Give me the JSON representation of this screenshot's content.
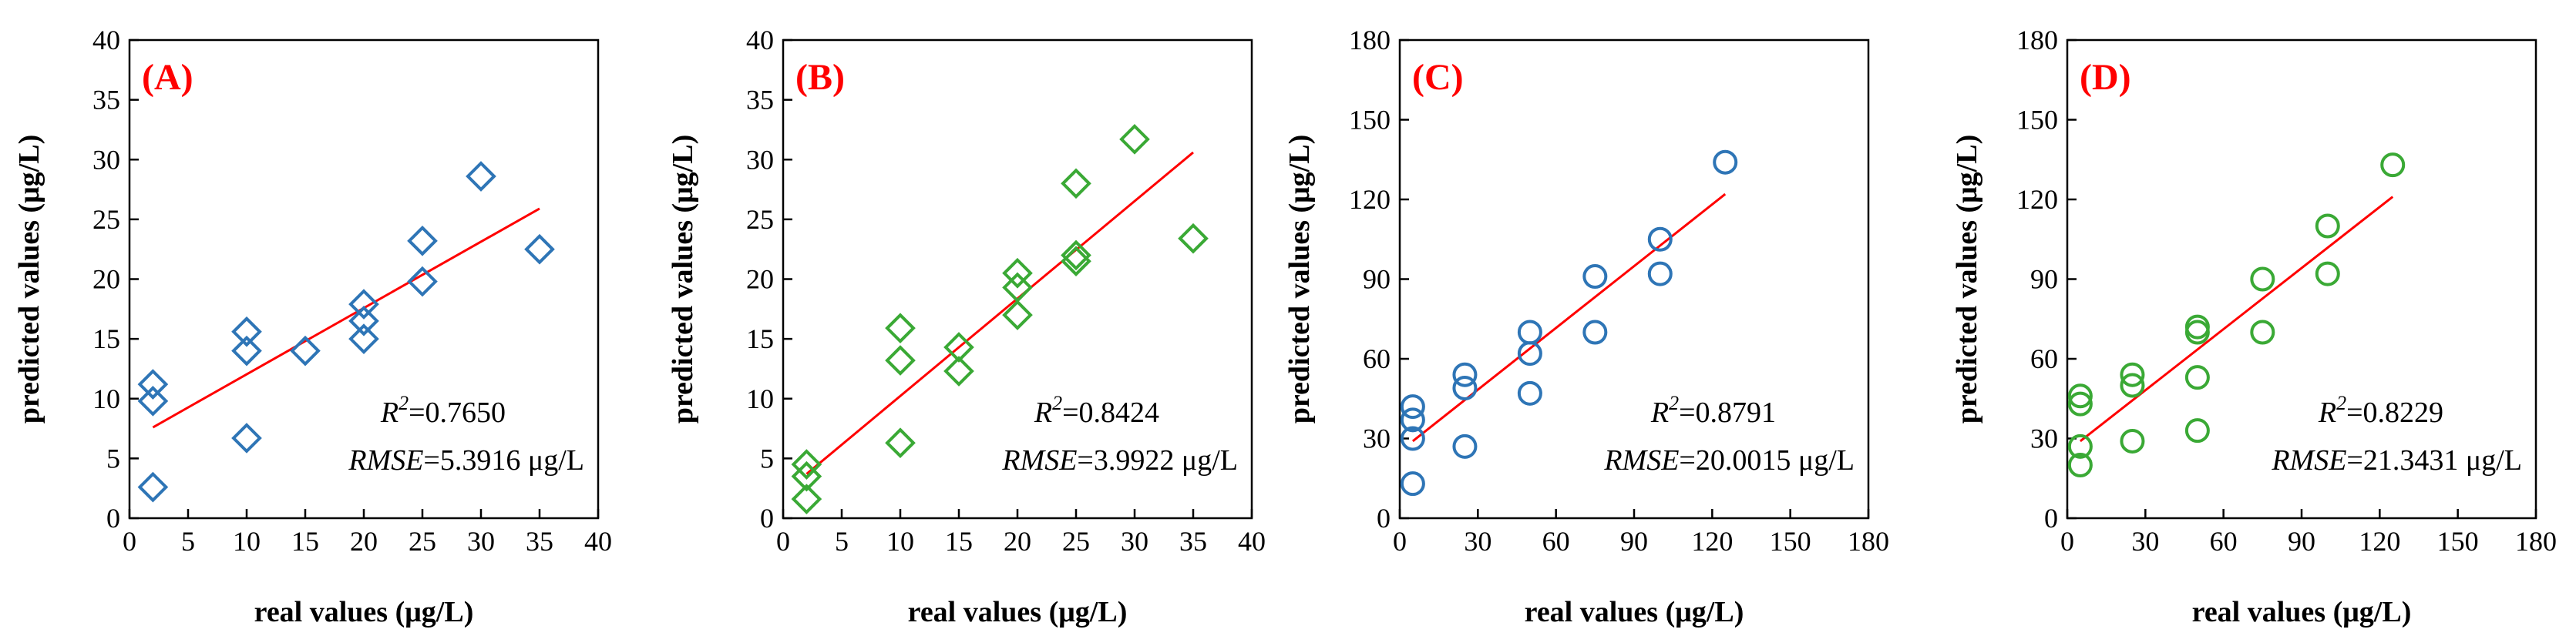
{
  "colors": {
    "blue": "#2e75b6",
    "green": "#3aa935",
    "fit": "#ff0000",
    "axis": "#000000"
  },
  "chart_data": [
    {
      "type": "scatter",
      "panel_label": "(A)",
      "xlabel": "real values (μg/L)",
      "ylabel": "predicted values (μg/L)",
      "xlim": [
        0,
        40
      ],
      "ylim": [
        0,
        40
      ],
      "xticks": [
        "0",
        "5",
        "10",
        "15",
        "20",
        "25",
        "30",
        "35",
        "40"
      ],
      "yticks": [
        "0",
        "5",
        "10",
        "15",
        "20",
        "25",
        "30",
        "35",
        "40"
      ],
      "marker": "diamond",
      "marker_color": "blue",
      "points": [
        [
          2,
          2.6
        ],
        [
          2,
          9.8
        ],
        [
          2,
          11.2
        ],
        [
          10,
          6.7
        ],
        [
          10,
          14
        ],
        [
          10,
          15.6
        ],
        [
          15,
          14
        ],
        [
          20,
          15
        ],
        [
          20,
          16.5
        ],
        [
          20,
          17.9
        ],
        [
          25,
          19.8
        ],
        [
          25,
          23.2
        ],
        [
          30,
          28.6
        ],
        [
          35,
          22.5
        ]
      ],
      "fit": [
        [
          2,
          7.6
        ],
        [
          35,
          25.9
        ]
      ],
      "r2_label": "R",
      "r2_sup": "2",
      "r2_value": "=0.7650",
      "rmse_label": "RMSE",
      "rmse_value": "=5.3916 μg/L"
    },
    {
      "type": "scatter",
      "panel_label": "(B)",
      "xlabel": "real values (μg/L)",
      "ylabel": "predicted values (μg/L)",
      "xlim": [
        0,
        40
      ],
      "ylim": [
        0,
        40
      ],
      "xticks": [
        "0",
        "5",
        "10",
        "15",
        "20",
        "25",
        "30",
        "35",
        "40"
      ],
      "yticks": [
        "0",
        "5",
        "10",
        "15",
        "20",
        "25",
        "30",
        "35",
        "40"
      ],
      "marker": "diamond",
      "marker_color": "green",
      "points": [
        [
          2,
          1.6
        ],
        [
          2,
          3.5
        ],
        [
          2,
          4.5
        ],
        [
          10,
          6.3
        ],
        [
          10,
          13.2
        ],
        [
          10,
          15.9
        ],
        [
          15,
          12.3
        ],
        [
          15,
          14.3
        ],
        [
          20,
          17
        ],
        [
          20,
          19.3
        ],
        [
          20,
          20.5
        ],
        [
          25,
          21.5
        ],
        [
          25,
          22
        ],
        [
          25,
          28
        ],
        [
          30,
          31.7
        ],
        [
          35,
          23.4
        ]
      ],
      "fit": [
        [
          2,
          3.7
        ],
        [
          35,
          30.6
        ]
      ],
      "r2_label": "R",
      "r2_sup": "2",
      "r2_value": "=0.8424",
      "rmse_label": "RMSE",
      "rmse_value": "=3.9922 μg/L"
    },
    {
      "type": "scatter",
      "panel_label": "(C)",
      "xlabel": "real values (μg/L)",
      "ylabel": "predicted values (μg/L)",
      "xlim": [
        0,
        180
      ],
      "ylim": [
        0,
        180
      ],
      "xticks": [
        "0",
        "30",
        "60",
        "90",
        "120",
        "150",
        "180"
      ],
      "yticks": [
        "0",
        "30",
        "60",
        "90",
        "120",
        "150",
        "180"
      ],
      "marker": "circle",
      "marker_color": "blue",
      "points": [
        [
          5,
          13
        ],
        [
          5,
          30
        ],
        [
          5,
          37
        ],
        [
          5,
          42
        ],
        [
          25,
          27
        ],
        [
          25,
          49
        ],
        [
          25,
          54
        ],
        [
          50,
          47
        ],
        [
          50,
          62
        ],
        [
          50,
          70
        ],
        [
          75,
          70
        ],
        [
          75,
          91
        ],
        [
          100,
          92
        ],
        [
          100,
          105
        ],
        [
          125,
          134
        ]
      ],
      "fit": [
        [
          5,
          29
        ],
        [
          125,
          122
        ]
      ],
      "r2_label": "R",
      "r2_sup": "2",
      "r2_value": "=0.8791",
      "rmse_label": "RMSE",
      "rmse_value": "=20.0015 μg/L"
    },
    {
      "type": "scatter",
      "panel_label": "(D)",
      "xlabel": "real values (μg/L)",
      "ylabel": "predicted values (μg/L)",
      "xlim": [
        0,
        180
      ],
      "ylim": [
        0,
        180
      ],
      "xticks": [
        "0",
        "30",
        "60",
        "90",
        "120",
        "150",
        "180"
      ],
      "yticks": [
        "0",
        "30",
        "60",
        "90",
        "120",
        "150",
        "180"
      ],
      "marker": "circle",
      "marker_color": "green",
      "points": [
        [
          5,
          20
        ],
        [
          5,
          27
        ],
        [
          5,
          43
        ],
        [
          5,
          46
        ],
        [
          25,
          29
        ],
        [
          25,
          50
        ],
        [
          25,
          54
        ],
        [
          50,
          33
        ],
        [
          50,
          53
        ],
        [
          50,
          70
        ],
        [
          50,
          72
        ],
        [
          75,
          70
        ],
        [
          75,
          90
        ],
        [
          100,
          92
        ],
        [
          100,
          110
        ],
        [
          125,
          133
        ]
      ],
      "fit": [
        [
          5,
          29
        ],
        [
          125,
          121
        ]
      ],
      "r2_label": "R",
      "r2_sup": "2",
      "r2_value": "=0.8229",
      "rmse_label": "RMSE",
      "rmse_value": "=21.3431 μg/L"
    }
  ]
}
